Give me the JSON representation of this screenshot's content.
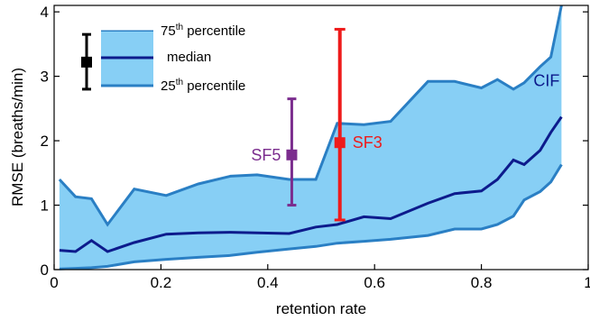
{
  "chart_data": {
    "type": "area",
    "title": "",
    "xlabel": "retention rate",
    "ylabel": "RMSE (breaths/min)",
    "xlim": [
      0,
      1
    ],
    "ylim": [
      0,
      4.1
    ],
    "xticks": [
      0,
      0.2,
      0.4,
      0.6,
      0.8,
      1
    ],
    "xtick_labels": [
      "0",
      "0.2",
      "0.4",
      "0.6",
      "0.8",
      "1"
    ],
    "yticks": [
      0,
      1,
      2,
      3,
      4
    ],
    "ytick_labels": [
      "0",
      "1",
      "2",
      "3",
      "4"
    ],
    "grid": false,
    "legend_position": "top-left",
    "x": [
      0.01,
      0.04,
      0.07,
      0.1,
      0.15,
      0.21,
      0.27,
      0.33,
      0.38,
      0.44,
      0.49,
      0.53,
      0.58,
      0.63,
      0.7,
      0.75,
      0.8,
      0.83,
      0.86,
      0.88,
      0.91,
      0.93,
      0.95
    ],
    "series": [
      {
        "name": "75th percentile",
        "color": "#2a7fc4",
        "values": [
          1.4,
          1.13,
          1.1,
          0.7,
          1.25,
          1.15,
          1.33,
          1.45,
          1.47,
          1.4,
          1.4,
          2.27,
          2.25,
          2.3,
          2.92,
          2.92,
          2.82,
          2.95,
          2.8,
          2.9,
          3.15,
          3.3,
          4.15
        ]
      },
      {
        "name": "median",
        "color": "#0d1b8c",
        "values": [
          0.3,
          0.28,
          0.45,
          0.28,
          0.42,
          0.55,
          0.57,
          0.58,
          0.57,
          0.56,
          0.66,
          0.7,
          0.82,
          0.79,
          1.03,
          1.18,
          1.22,
          1.4,
          1.7,
          1.63,
          1.85,
          2.13,
          2.37
        ]
      },
      {
        "name": "25th percentile",
        "color": "#2a7fc4",
        "values": [
          0.01,
          0.02,
          0.03,
          0.05,
          0.12,
          0.16,
          0.19,
          0.22,
          0.27,
          0.32,
          0.36,
          0.41,
          0.44,
          0.47,
          0.53,
          0.63,
          0.63,
          0.7,
          0.83,
          1.08,
          1.21,
          1.36,
          1.63
        ]
      }
    ],
    "band_fill": "#87cff5",
    "points": [
      {
        "name": "SF5",
        "x": 0.445,
        "y": 1.78,
        "lower": 1.0,
        "upper": 2.65,
        "color": "#7b2d8e"
      },
      {
        "name": "SF3",
        "x": 0.535,
        "y": 1.97,
        "lower": 0.77,
        "upper": 3.73,
        "color": "#ee1b1b"
      }
    ],
    "series_labels": [
      {
        "text": "CIF",
        "color": "#0d1b8c"
      }
    ],
    "legend": {
      "items": [
        {
          "label": "75",
          "sup": "th",
          "rest": " percentile"
        },
        {
          "label": "median",
          "sup": "",
          "rest": ""
        },
        {
          "label": "25",
          "sup": "th",
          "rest": " percentile"
        }
      ],
      "marker": {
        "value": 3.22,
        "lower": 2.8,
        "upper": 3.65,
        "color": "#000000"
      }
    }
  }
}
